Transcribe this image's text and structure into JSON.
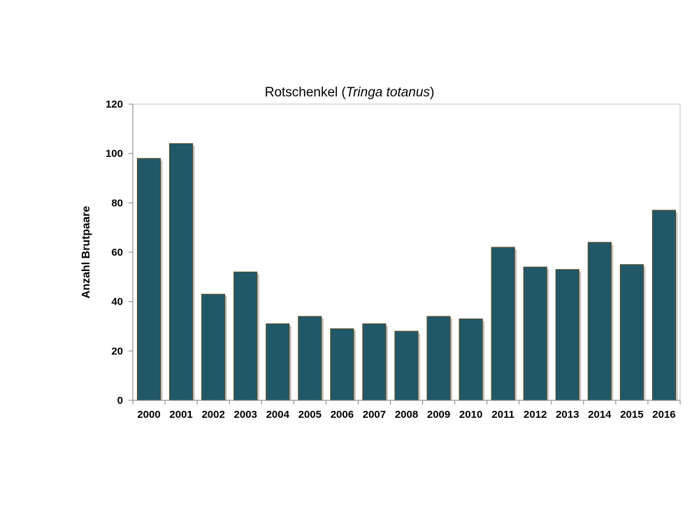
{
  "chart_data": {
    "type": "bar",
    "title": {
      "prefix": "Rotschenkel (",
      "italic": "Tringa totanus",
      "suffix": ")"
    },
    "xlabel": "",
    "ylabel": "Anzahl Brutpaare",
    "categories": [
      "2000",
      "2001",
      "2002",
      "2003",
      "2004",
      "2005",
      "2006",
      "2007",
      "2008",
      "2009",
      "2010",
      "2011",
      "2012",
      "2013",
      "2014",
      "2015",
      "2016"
    ],
    "values": [
      98,
      104,
      43,
      52,
      31,
      34,
      29,
      31,
      28,
      34,
      33,
      62,
      54,
      53,
      64,
      55,
      77
    ],
    "ylim": [
      0,
      120
    ],
    "yticks": [
      0,
      20,
      40,
      60,
      80,
      100,
      120
    ],
    "grid": false,
    "bar_color": "#215868",
    "bar_outline_color": "#5a4a1e"
  }
}
